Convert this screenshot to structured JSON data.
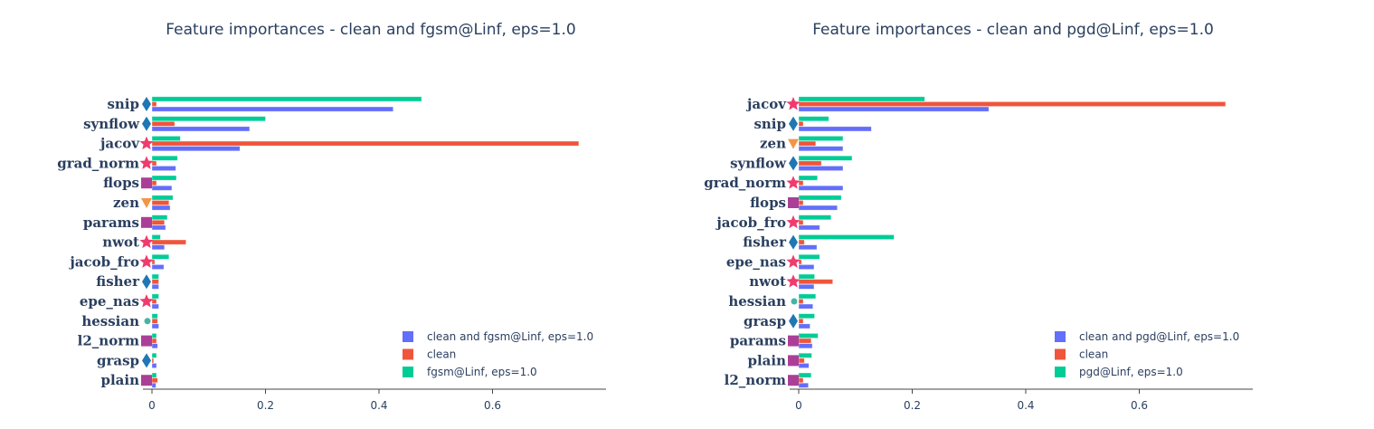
{
  "colors": {
    "series_blue": "#636efa",
    "series_red": "#ef553b",
    "series_green": "#00cc96",
    "marker_pink": "#ef3b6e",
    "marker_blue": "#1f77b4",
    "marker_orange": "#f0964a",
    "marker_purple": "#ab3f98",
    "marker_teal": "#41b6a6",
    "axis_text": "#2a3f5f"
  },
  "chart_data": [
    {
      "type": "bar",
      "orientation": "horizontal",
      "title": "Feature importances - clean and fgsm@Linf, eps=1.0",
      "xlim": [
        -0.01,
        0.8
      ],
      "xticks": [
        0,
        0.2,
        0.4,
        0.6
      ],
      "xtick_labels": [
        "0",
        "0.2",
        "0.4",
        "0.6"
      ],
      "grid": false,
      "legend_position": "bottom-right",
      "categories": [
        "snip",
        "synflow",
        "jacov",
        "grad_norm",
        "flops",
        "zen",
        "params",
        "nwot",
        "jacob_fro",
        "fisher",
        "epe_nas",
        "hessian",
        "l2_norm",
        "grasp",
        "plain"
      ],
      "markers": [
        "diamond",
        "diamond",
        "star",
        "star",
        "square",
        "triangle-down",
        "square",
        "star",
        "star",
        "diamond",
        "star",
        "circle",
        "square",
        "diamond",
        "square"
      ],
      "series": [
        {
          "name": "clean and fgsm@Linf, eps=1.0",
          "color": "#636efa",
          "values": [
            0.425,
            0.172,
            0.155,
            0.042,
            0.035,
            0.032,
            0.024,
            0.022,
            0.021,
            0.012,
            0.012,
            0.012,
            0.01,
            0.008,
            0.007
          ]
        },
        {
          "name": "clean",
          "color": "#ef553b",
          "values": [
            0.008,
            0.04,
            0.752,
            0.008,
            0.008,
            0.03,
            0.022,
            0.06,
            0.005,
            0.012,
            0.008,
            0.01,
            0.008,
            0.003,
            0.01
          ]
        },
        {
          "name": "fgsm@Linf, eps=1.0",
          "color": "#00cc96",
          "values": [
            0.475,
            0.2,
            0.05,
            0.045,
            0.043,
            0.037,
            0.027,
            0.015,
            0.03,
            0.012,
            0.012,
            0.01,
            0.008,
            0.008,
            0.008
          ]
        }
      ]
    },
    {
      "type": "bar",
      "orientation": "horizontal",
      "title": "Feature importances - clean and pgd@Linf, eps=1.0",
      "xlim": [
        -0.01,
        0.8
      ],
      "xticks": [
        0,
        0.2,
        0.4,
        0.6
      ],
      "xtick_labels": [
        "0",
        "0.2",
        "0.4",
        "0.6"
      ],
      "grid": false,
      "legend_position": "bottom-right",
      "categories": [
        "jacov",
        "snip",
        "zen",
        "synflow",
        "grad_norm",
        "flops",
        "jacob_fro",
        "fisher",
        "epe_nas",
        "nwot",
        "hessian",
        "grasp",
        "params",
        "plain",
        "l2_norm"
      ],
      "markers": [
        "star",
        "diamond",
        "triangle-down",
        "diamond",
        "star",
        "square",
        "star",
        "diamond",
        "star",
        "star",
        "circle",
        "diamond",
        "square",
        "square",
        "square"
      ],
      "series": [
        {
          "name": "clean and pgd@Linf, eps=1.0",
          "color": "#636efa",
          "values": [
            0.335,
            0.128,
            0.078,
            0.078,
            0.078,
            0.068,
            0.037,
            0.032,
            0.027,
            0.027,
            0.025,
            0.02,
            0.024,
            0.018,
            0.017
          ]
        },
        {
          "name": "clean",
          "color": "#ef553b",
          "values": [
            0.752,
            0.008,
            0.03,
            0.04,
            0.008,
            0.008,
            0.008,
            0.01,
            0.005,
            0.06,
            0.008,
            0.008,
            0.022,
            0.01,
            0.008
          ]
        },
        {
          "name": "pgd@Linf, eps=1.0",
          "color": "#00cc96",
          "values": [
            0.222,
            0.053,
            0.078,
            0.094,
            0.033,
            0.075,
            0.057,
            0.168,
            0.037,
            0.028,
            0.03,
            0.028,
            0.034,
            0.023,
            0.022
          ]
        }
      ]
    }
  ]
}
